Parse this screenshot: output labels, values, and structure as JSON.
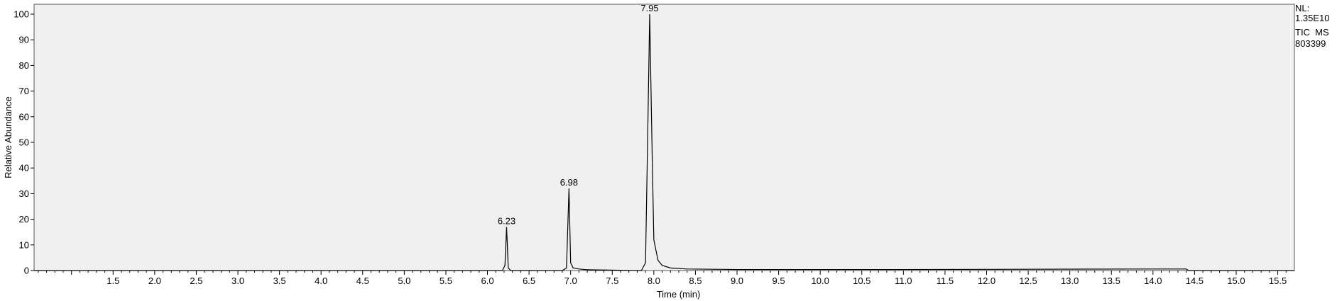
{
  "chart_data": {
    "type": "line",
    "title": "",
    "xlabel": "Time (min)",
    "ylabel": "Relative Abundance",
    "xlim": [
      0.55,
      15.7
    ],
    "ylim": [
      0,
      100
    ],
    "grid": false,
    "background": "#f0f0f0",
    "line_color": "#000000",
    "x_major_ticks": [
      "1.5",
      "2.0",
      "2.5",
      "3.0",
      "3.5",
      "4.0",
      "4.5",
      "5.0",
      "5.5",
      "6.0",
      "6.5",
      "7.0",
      "7.5",
      "8.0",
      "8.5",
      "9.0",
      "9.5",
      "10.0",
      "10.5",
      "11.0",
      "11.5",
      "12.0",
      "12.5",
      "13.0",
      "13.5",
      "14.0",
      "14.5",
      "15.0",
      "15.5"
    ],
    "y_ticks": [
      "0",
      "10",
      "20",
      "30",
      "40",
      "50",
      "60",
      "70",
      "80",
      "90",
      "100"
    ],
    "peak_labels": [
      {
        "x": 6.23,
        "y": 17,
        "text": "6.23"
      },
      {
        "x": 6.98,
        "y": 32,
        "text": "6.98"
      },
      {
        "x": 7.95,
        "y": 100,
        "text": "7.95"
      }
    ],
    "series": [
      {
        "x": [
          0.55,
          6.18,
          6.21,
          6.23,
          6.25,
          6.28,
          6.9,
          6.95,
          6.98,
          7.0,
          7.03,
          7.1,
          7.2,
          7.85,
          7.9,
          7.93,
          7.95,
          7.98,
          8.0,
          8.05,
          8.1,
          8.2,
          8.4,
          9.0,
          11.0,
          14.0,
          14.4,
          14.43,
          15.7
        ],
        "y": [
          0,
          0,
          2,
          17,
          1,
          0,
          0,
          1,
          32,
          3,
          1,
          0.6,
          0.3,
          0,
          3,
          60,
          100,
          45,
          12,
          4,
          2,
          1,
          0.6,
          0.4,
          0.4,
          0.6,
          0.6,
          0,
          0
        ]
      }
    ]
  },
  "side_info": {
    "line1": "NL:",
    "line2": "1.35E10",
    "line3": "TIC  MS",
    "line4": "803399"
  }
}
